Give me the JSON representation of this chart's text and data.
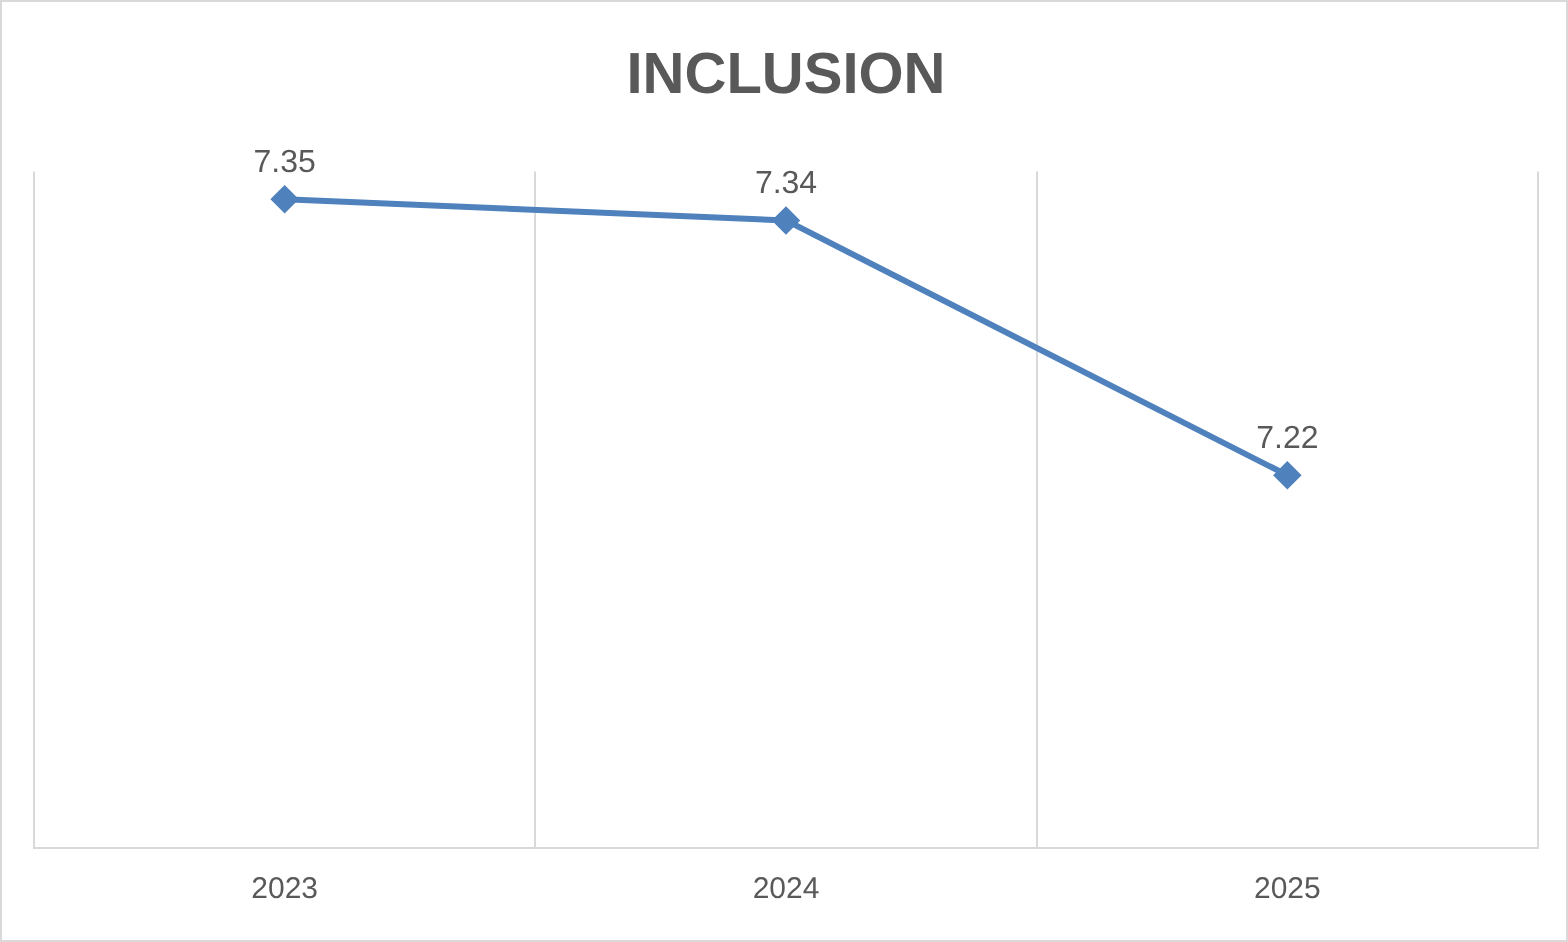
{
  "chart_data": {
    "type": "line",
    "title": "INCLUSION",
    "categories": [
      "2023",
      "2024",
      "2025"
    ],
    "series": [
      {
        "color": "#4f81bd",
        "values": [
          7.35,
          7.34,
          7.22
        ]
      }
    ],
    "data_labels": true,
    "grid": "x",
    "legend": false,
    "marker": "diamond",
    "line_style": "solid"
  }
}
